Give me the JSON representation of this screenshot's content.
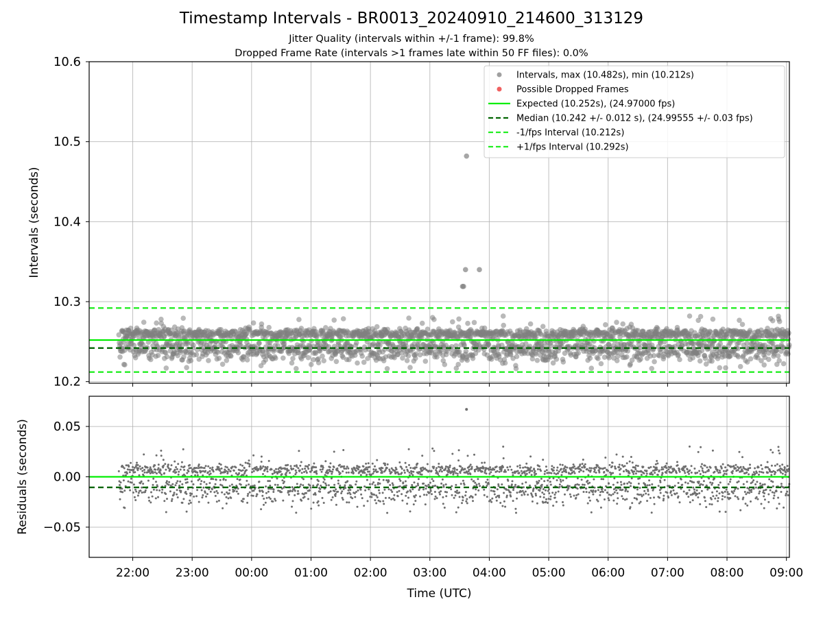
{
  "figure": {
    "title": "Timestamp Intervals - BR0013_20240910_214600_313129",
    "subtitle_jitter": "Jitter Quality (intervals within +/-1 frame): 99.8%",
    "subtitle_dropped": "Dropped Frame Rate (intervals >1 frames late within 50 FF files): 0.0%"
  },
  "colors": {
    "points": "#808080",
    "dropped": "#f08080",
    "expected": "#00ee00",
    "median": "#006400",
    "fps_interval": "#22ee22",
    "grid": "#b0b0b0"
  },
  "chart_data": [
    {
      "type": "scatter",
      "ylabel": "Intervals (seconds)",
      "xlabel": "",
      "x_range": [
        "21:16",
        "09:03"
      ],
      "ylim": [
        10.198,
        10.6
      ],
      "y_ticks": [
        "10.2",
        "10.3",
        "10.4",
        "10.5",
        "10.6"
      ],
      "y_tick_values": [
        10.2,
        10.3,
        10.4,
        10.5,
        10.6
      ],
      "grid": true,
      "legend_placement": "upper right",
      "legend": [
        {
          "label": "Intervals, max (10.482s), min (10.212s)",
          "kind": "marker",
          "color": "#a0a0a0"
        },
        {
          "label": "Possible Dropped Frames",
          "kind": "marker",
          "color": "#f06060"
        },
        {
          "label": "Expected (10.252s), (24.97000 fps)",
          "kind": "line",
          "color": "#00ee00"
        },
        {
          "label": "Median (10.242 +/- 0.012 s), (24.99555 +/- 0.03 fps)",
          "kind": "dashed",
          "color": "#006400"
        },
        {
          "label": "-1/fps Interval (10.212s)",
          "kind": "dashed",
          "color": "#22ee22"
        },
        {
          "label": "+1/fps Interval (10.292s)",
          "kind": "dashed",
          "color": "#22ee22"
        }
      ],
      "reference_lines": [
        {
          "name": "Expected",
          "y": 10.252,
          "style": "solid",
          "color": "#00ee00"
        },
        {
          "name": "Median",
          "y": 10.242,
          "style": "dashed",
          "color": "#006400"
        },
        {
          "name": "-1/fps Interval",
          "y": 10.212,
          "style": "dashed",
          "color": "#22ee22"
        },
        {
          "name": "+1/fps Interval",
          "y": 10.292,
          "style": "dashed",
          "color": "#22ee22"
        }
      ],
      "data_time_span": [
        "21:46",
        "09:03"
      ],
      "main_clusters": [
        {
          "y": 10.26,
          "spread": 0.003
        },
        {
          "y": 10.24,
          "spread": 0.007
        }
      ],
      "occasional_range": [
        10.212,
        10.29
      ],
      "series": [
        {
          "name": "Intervals",
          "notable_points": [
            {
              "x": "03:37",
              "y": 10.482
            },
            {
              "x": "03:36",
              "y": 10.34
            },
            {
              "x": "03:50",
              "y": 10.34
            },
            {
              "x": "03:33",
              "y": 10.319
            },
            {
              "x": "03:34",
              "y": 10.319
            }
          ]
        },
        {
          "name": "Possible Dropped Frames",
          "points": []
        }
      ]
    },
    {
      "type": "scatter",
      "ylabel": "Residuals (seconds)",
      "xlabel": "Time (UTC)",
      "x_ticks": [
        "22:00",
        "23:00",
        "00:00",
        "01:00",
        "02:00",
        "03:00",
        "04:00",
        "05:00",
        "06:00",
        "07:00",
        "08:00",
        "09:00"
      ],
      "x_range": [
        "21:16",
        "09:03"
      ],
      "ylim": [
        -0.08,
        0.08
      ],
      "y_ticks": [
        "0.05",
        "0.00",
        "−0.05"
      ],
      "y_tick_values": [
        0.05,
        0.0,
        -0.05
      ],
      "grid": true,
      "reference_lines": [
        {
          "name": "Expected",
          "y": 0.0,
          "style": "solid",
          "color": "#00ee00"
        },
        {
          "name": "Median",
          "y": -0.0105,
          "style": "dashed",
          "color": "#006400"
        }
      ],
      "main_clusters": [
        {
          "y": 0.007,
          "spread": 0.003
        },
        {
          "y": -0.013,
          "spread": 0.007
        }
      ],
      "series": [
        {
          "name": "Residuals",
          "notable_points": [
            {
              "x": "03:37",
              "y": 0.067
            }
          ]
        }
      ]
    }
  ]
}
